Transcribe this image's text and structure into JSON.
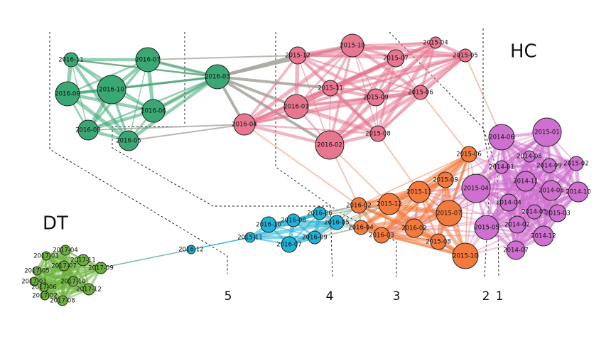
{
  "labels": {
    "hc": "HC",
    "dt": "DT"
  },
  "cuts": [
    "5",
    "4",
    "3",
    "2",
    "1"
  ],
  "clusters": [
    {
      "color": "#3aa873",
      "nodes": [
        "2016-11",
        "2016-07",
        "2016-10",
        "2016-09",
        "2016-06",
        "2016-08",
        "2016-05",
        "2016-03"
      ]
    },
    {
      "color": "#e8768f",
      "nodes": [
        "2015-12",
        "2015-10",
        "2015-07",
        "2015-04",
        "2015-05",
        "2015-11",
        "2015-09",
        "2015-06",
        "2016-01",
        "2016-04",
        "2016-02",
        "2015-08"
      ]
    },
    {
      "color": "#cf6fcf",
      "nodes": [
        "2015-01",
        "2014-06",
        "2014-08",
        "2014-01",
        "2014-09",
        "2015-02",
        "2014-11",
        "2014-03",
        "2014-10",
        "2015-04",
        "2014-04",
        "2014-05",
        "2015-03",
        "2015-05",
        "2014-02",
        "2014-12",
        "2014-07"
      ]
    },
    {
      "color": "#f47a3c",
      "nodes": [
        "2015-06",
        "2015-09",
        "2015-11",
        "2015-12",
        "2015-07",
        "2016-02",
        "2016-02",
        "2016-04",
        "2016-03",
        "2015-08",
        "2015-10"
      ]
    },
    {
      "color": "#1fb3d9",
      "nodes": [
        "2016-10",
        "2016-08",
        "2016-06",
        "2016-05",
        "2016-07",
        "2016-09",
        "2015-11",
        "2016-12"
      ]
    },
    {
      "color": "#6ab03a",
      "nodes": [
        "2017-04",
        "2017-03",
        "2017-11",
        "2017-07",
        "2017-05",
        "2017-09",
        "2017-01",
        "2017-10",
        "2017-06",
        "2017-12",
        "2017-02",
        "2017-08"
      ]
    }
  ]
}
